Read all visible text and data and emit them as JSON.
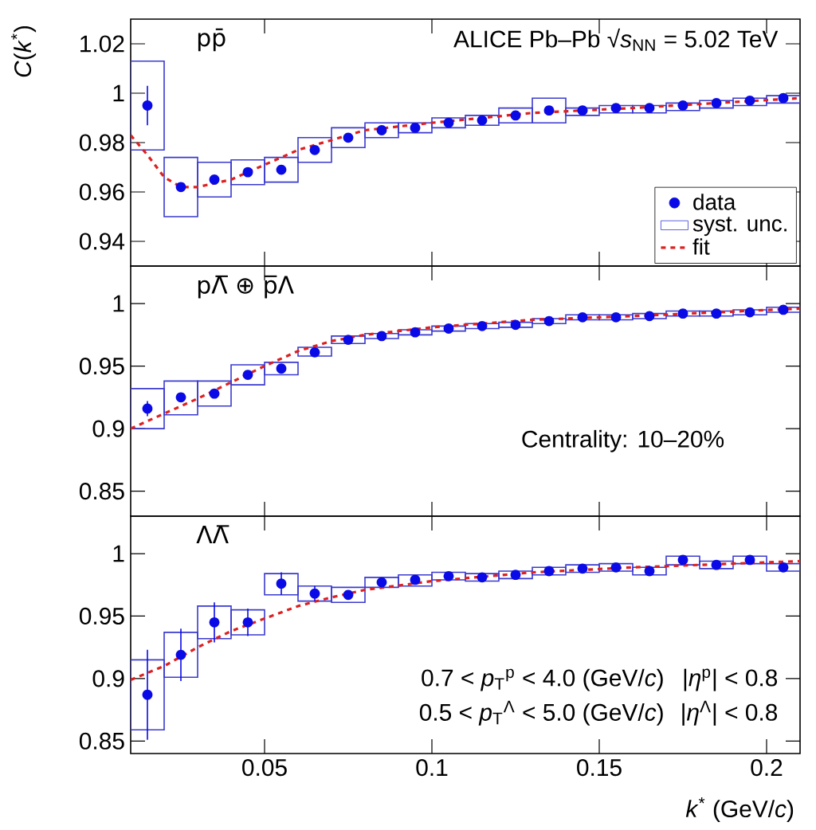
{
  "chart_data": [
    {
      "type": "scatter",
      "marker": "circle",
      "ylabel": "*C*(*k*$^{*}$)",
      "annotations": [
        "pp̄",
        "ALICE Pb–Pb √*s*$_{NN}$ = 5.02 TeV"
      ],
      "xlim": [
        0.01,
        0.21
      ],
      "xticks": [
        0.05,
        0.1,
        0.15,
        0.2
      ],
      "ylim": [
        0.93,
        1.03
      ],
      "yticks": [
        0.94,
        0.96,
        0.98,
        1,
        1.02
      ],
      "tick_labels": "y",
      "legend": "bottom right",
      "x": [
        0.015,
        0.025,
        0.035,
        0.045,
        0.055,
        0.065,
        0.075,
        0.085,
        0.095,
        0.105,
        0.115,
        0.125,
        0.135,
        0.145,
        0.155,
        0.165,
        0.175,
        0.185,
        0.195,
        0.205
      ],
      "series": [
        {
          "name": "data",
          "color": "#0a0ae6",
          "values": [
            0.995,
            0.962,
            0.965,
            0.968,
            0.969,
            0.977,
            0.982,
            0.985,
            0.986,
            0.988,
            0.989,
            0.991,
            0.993,
            0.993,
            0.994,
            0.994,
            0.995,
            0.996,
            0.997,
            0.998
          ],
          "errors": [
            0.008,
            null,
            null,
            null,
            null,
            null,
            null,
            null,
            null,
            null,
            null,
            null,
            null,
            null,
            null,
            null,
            null,
            null,
            null,
            null
          ]
        },
        {
          "name": "syst. unc.",
          "type": "bar",
          "color": "#3a3ad0",
          "base": [
            0.977,
            0.95,
            0.958,
            0.963,
            0.964,
            0.972,
            0.978,
            0.982,
            0.984,
            0.986,
            0.987,
            0.988,
            0.988,
            0.991,
            0.992,
            0.992,
            0.993,
            0.994,
            0.995,
            0.996
          ],
          "values": [
            0.036,
            0.024,
            0.014,
            0.01,
            0.01,
            0.01,
            0.008,
            0.006,
            0.004,
            0.004,
            0.004,
            0.006,
            0.01,
            0.003,
            0.003,
            0.003,
            0.003,
            0.003,
            0.003,
            0.003
          ]
        },
        {
          "name": "fit",
          "type": "line",
          "marker": "none",
          "line_style": "dashed",
          "color": "#dd2020",
          "x": [
            0.01,
            0.015,
            0.02,
            0.025,
            0.03,
            0.04,
            0.05,
            0.06,
            0.08,
            0.1,
            0.13,
            0.16,
            0.21
          ],
          "values": [
            0.983,
            0.975,
            0.966,
            0.962,
            0.962,
            0.965,
            0.971,
            0.977,
            0.985,
            0.988,
            0.992,
            0.994,
            0.998
          ]
        }
      ]
    },
    {
      "type": "scatter",
      "marker": "circle",
      "annotations": [
        "pΛ̅ ⊕ p̅Λ",
        "Centrality: 10–20%"
      ],
      "xlim": [
        0.01,
        0.21
      ],
      "xticks": [
        0.05,
        0.1,
        0.15,
        0.2
      ],
      "ylim": [
        0.83,
        1.03
      ],
      "yticks": [
        0.85,
        0.9,
        0.95,
        1
      ],
      "tick_labels": "y",
      "x": [
        0.015,
        0.025,
        0.035,
        0.045,
        0.055,
        0.065,
        0.075,
        0.085,
        0.095,
        0.105,
        0.115,
        0.125,
        0.135,
        0.145,
        0.155,
        0.165,
        0.175,
        0.185,
        0.195,
        0.205
      ],
      "series": [
        {
          "color": "#0a0ae6",
          "values": [
            0.916,
            0.925,
            0.928,
            0.943,
            0.948,
            0.961,
            0.971,
            0.974,
            0.977,
            0.98,
            0.982,
            0.983,
            0.986,
            0.989,
            0.989,
            0.99,
            0.992,
            0.992,
            0.993,
            0.995
          ],
          "errors": [
            0.006,
            null,
            null,
            null,
            null,
            null,
            null,
            null,
            null,
            null,
            null,
            null,
            null,
            null,
            null,
            null,
            null,
            null,
            null,
            null
          ]
        },
        {
          "type": "bar",
          "color": "#3a3ad0",
          "base": [
            0.9,
            0.911,
            0.918,
            0.935,
            0.943,
            0.958,
            0.968,
            0.972,
            0.975,
            0.978,
            0.98,
            0.981,
            0.984,
            0.987,
            0.987,
            0.988,
            0.99,
            0.99,
            0.991,
            0.993
          ],
          "values": [
            0.032,
            0.027,
            0.02,
            0.016,
            0.01,
            0.007,
            0.006,
            0.004,
            0.004,
            0.004,
            0.004,
            0.004,
            0.004,
            0.004,
            0.004,
            0.004,
            0.004,
            0.004,
            0.004,
            0.004
          ]
        },
        {
          "type": "line",
          "marker": "none",
          "line_style": "dashed",
          "color": "#dd2020",
          "x": [
            0.01,
            0.02,
            0.03,
            0.04,
            0.05,
            0.06,
            0.07,
            0.08,
            0.1,
            0.13,
            0.16,
            0.21
          ],
          "values": [
            0.9,
            0.912,
            0.924,
            0.937,
            0.95,
            0.962,
            0.97,
            0.975,
            0.981,
            0.987,
            0.99,
            0.996
          ]
        }
      ]
    },
    {
      "type": "scatter",
      "marker": "circle",
      "xlabel": "*k*$^{*}$ (GeV/*c*)",
      "annotations": [
        "ΛΛ̅",
        "0.7 < *p*$_{T}$$^{p}$ < 4.0 (GeV/*c*)",
        "|*η*$^{p}$| < 0.8",
        "0.5 < *p*$_{T}$$^{Λ}$ < 5.0 (GeV/*c*)",
        "|*η*$^{Λ}$| < 0.8"
      ],
      "xlim": [
        0.01,
        0.21
      ],
      "xticks": [
        0.05,
        0.1,
        0.15,
        0.2
      ],
      "ylim": [
        0.84,
        1.03
      ],
      "yticks": [
        0.85,
        0.9,
        0.95,
        1
      ],
      "x": [
        0.015,
        0.025,
        0.035,
        0.045,
        0.055,
        0.065,
        0.075,
        0.085,
        0.095,
        0.105,
        0.115,
        0.125,
        0.135,
        0.145,
        0.155,
        0.165,
        0.175,
        0.185,
        0.195,
        0.205
      ],
      "series": [
        {
          "color": "#0a0ae6",
          "values": [
            0.887,
            0.919,
            0.945,
            0.945,
            0.976,
            0.968,
            0.967,
            0.977,
            0.979,
            0.982,
            0.981,
            0.983,
            0.986,
            0.988,
            0.989,
            0.986,
            0.995,
            0.991,
            0.995,
            0.989
          ],
          "errors": [
            0.036,
            0.021,
            0.016,
            0.011,
            0.009,
            0.006,
            null,
            null,
            null,
            null,
            null,
            null,
            null,
            null,
            null,
            null,
            null,
            null,
            null,
            null
          ]
        },
        {
          "type": "bar",
          "color": "#3a3ad0",
          "base": [
            0.859,
            0.901,
            0.932,
            0.935,
            0.967,
            0.962,
            0.961,
            0.973,
            0.974,
            0.979,
            0.978,
            0.98,
            0.983,
            0.985,
            0.986,
            0.983,
            0.991,
            0.988,
            0.992,
            0.986
          ],
          "values": [
            0.056,
            0.036,
            0.026,
            0.02,
            0.017,
            0.012,
            0.012,
            0.008,
            0.009,
            0.006,
            0.006,
            0.006,
            0.006,
            0.006,
            0.006,
            0.006,
            0.007,
            0.006,
            0.006,
            0.006
          ]
        },
        {
          "type": "line",
          "marker": "none",
          "line_style": "dashed",
          "color": "#dd2020",
          "x": [
            0.01,
            0.02,
            0.03,
            0.04,
            0.05,
            0.06,
            0.07,
            0.08,
            0.1,
            0.13,
            0.16,
            0.21
          ],
          "values": [
            0.899,
            0.91,
            0.925,
            0.938,
            0.948,
            0.958,
            0.965,
            0.971,
            0.978,
            0.985,
            0.989,
            0.994
          ]
        }
      ]
    }
  ]
}
